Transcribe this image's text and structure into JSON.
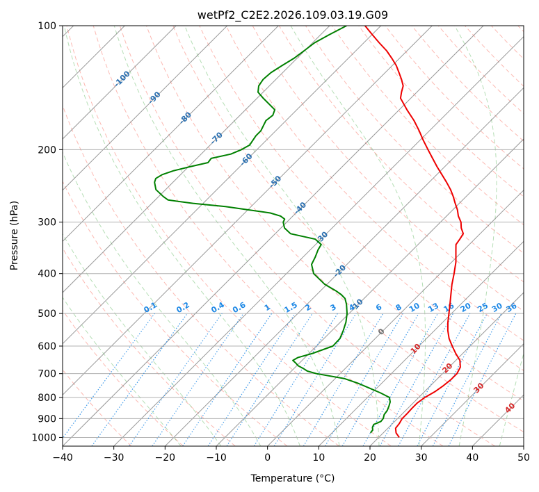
{
  "chart_data": {
    "type": "line",
    "subtype": "skew-t log-p diagram",
    "title": "wetPf2_C2E2.2026.109.03.19.G09",
    "xlabel": "Temperature (°C)",
    "ylabel": "Pressure (hPa)",
    "xlim": [
      -40,
      50
    ],
    "ylim": [
      1050,
      100
    ],
    "xticks": [
      -40,
      -30,
      -20,
      -10,
      0,
      10,
      20,
      30,
      40,
      50
    ],
    "yticks": [
      1000,
      900,
      800,
      700,
      600,
      500,
      400,
      300,
      200,
      100
    ],
    "grid": true,
    "colors": {
      "temperature": "#ee0000",
      "dewpoint": "#008000",
      "dry_adiabat": "#fa8072",
      "moist_adiabat": "#2ca02c",
      "isotherm": "#777777",
      "mixing_ratio": "#1e88e5",
      "freezing_isotherm_label": "#707070",
      "isotherm_label_blue": "#2a6fb0",
      "isotherm_label_red": "#d62728"
    },
    "isotherm_labels": [
      {
        "t": -100,
        "text": "-100",
        "p": 135
      },
      {
        "t": -90,
        "text": "-90",
        "p": 150
      },
      {
        "t": -80,
        "text": "-80",
        "p": 168
      },
      {
        "t": -70,
        "text": "-70",
        "p": 188
      },
      {
        "t": -60,
        "text": "-60",
        "p": 212
      },
      {
        "t": -50,
        "text": "-50",
        "p": 240
      },
      {
        "t": -40,
        "text": "-40",
        "p": 278
      },
      {
        "t": -30,
        "text": "-30",
        "p": 328
      },
      {
        "t": -20,
        "text": "-20",
        "p": 395
      },
      {
        "t": -10,
        "text": "-10",
        "p": 478
      },
      {
        "t": 0,
        "text": "0",
        "p": 555
      },
      {
        "t": 10,
        "text": "10",
        "p": 610
      },
      {
        "t": 20,
        "text": "20",
        "p": 680
      },
      {
        "t": 30,
        "text": "30",
        "p": 760
      },
      {
        "t": 40,
        "text": "40",
        "p": 850
      }
    ],
    "mixing_ratio_labels": [
      "0.1",
      "0.2",
      "0.4",
      "0.6",
      "1",
      "1.5",
      "2",
      "3",
      "4",
      "6",
      "8",
      "10",
      "13",
      "16",
      "20",
      "25",
      "30",
      "36"
    ],
    "series": [
      {
        "name": "Temperature",
        "points": [
          [
            1000,
            24.0
          ],
          [
            975,
            22.5
          ],
          [
            950,
            21.5
          ],
          [
            925,
            21.3
          ],
          [
            900,
            20.9
          ],
          [
            875,
            20.9
          ],
          [
            850,
            20.8
          ],
          [
            825,
            20.8
          ],
          [
            800,
            21.2
          ],
          [
            775,
            22.0
          ],
          [
            750,
            22.5
          ],
          [
            725,
            22.8
          ],
          [
            700,
            22.8
          ],
          [
            675,
            22.2
          ],
          [
            650,
            20.8
          ],
          [
            625,
            18.6
          ],
          [
            600,
            16.5
          ],
          [
            575,
            14.4
          ],
          [
            550,
            12.6
          ],
          [
            525,
            11.0
          ],
          [
            500,
            9.5
          ],
          [
            475,
            7.9
          ],
          [
            450,
            6.2
          ],
          [
            425,
            4.4
          ],
          [
            400,
            2.7
          ],
          [
            375,
            0.8
          ],
          [
            350,
            -1.6
          ],
          [
            340,
            -2.6
          ],
          [
            330,
            -2.9
          ],
          [
            320,
            -3.3
          ],
          [
            310,
            -4.8
          ],
          [
            300,
            -6.0
          ],
          [
            290,
            -7.7
          ],
          [
            280,
            -9.1
          ],
          [
            270,
            -10.8
          ],
          [
            260,
            -12.5
          ],
          [
            250,
            -14.4
          ],
          [
            240,
            -16.6
          ],
          [
            230,
            -19.0
          ],
          [
            220,
            -21.5
          ],
          [
            210,
            -24.0
          ],
          [
            200,
            -26.6
          ],
          [
            190,
            -29.3
          ],
          [
            180,
            -32.0
          ],
          [
            170,
            -35.0
          ],
          [
            160,
            -38.5
          ],
          [
            150,
            -42.0
          ],
          [
            145,
            -43.0
          ],
          [
            140,
            -43.9
          ],
          [
            135,
            -45.5
          ],
          [
            130,
            -47.3
          ],
          [
            125,
            -49.2
          ],
          [
            120,
            -51.5
          ],
          [
            115,
            -54.0
          ],
          [
            110,
            -57.0
          ],
          [
            105,
            -60.0
          ],
          [
            100,
            -63.1
          ]
        ]
      },
      {
        "name": "Dewpoint",
        "points": [
          [
            975,
            17.5
          ],
          [
            960,
            17.4
          ],
          [
            945,
            16.8
          ],
          [
            930,
            16.5
          ],
          [
            915,
            17.3
          ],
          [
            900,
            17.2
          ],
          [
            880,
            16.6
          ],
          [
            860,
            16.4
          ],
          [
            840,
            15.9
          ],
          [
            820,
            15.3
          ],
          [
            800,
            14.3
          ],
          [
            780,
            11.7
          ],
          [
            760,
            8.7
          ],
          [
            740,
            5.6
          ],
          [
            720,
            1.9
          ],
          [
            700,
            -4.6
          ],
          [
            690,
            -6.9
          ],
          [
            680,
            -8.2
          ],
          [
            670,
            -9.7
          ],
          [
            660,
            -10.7
          ],
          [
            650,
            -11.8
          ],
          [
            640,
            -11.4
          ],
          [
            625,
            -9.3
          ],
          [
            600,
            -6.8
          ],
          [
            575,
            -6.9
          ],
          [
            550,
            -7.8
          ],
          [
            525,
            -8.9
          ],
          [
            500,
            -10.4
          ],
          [
            475,
            -12.3
          ],
          [
            460,
            -13.7
          ],
          [
            450,
            -15.2
          ],
          [
            440,
            -17.1
          ],
          [
            425,
            -20.4
          ],
          [
            400,
            -24.7
          ],
          [
            380,
            -26.9
          ],
          [
            365,
            -27.6
          ],
          [
            350,
            -28.5
          ],
          [
            340,
            -28.9
          ],
          [
            330,
            -31.1
          ],
          [
            320,
            -37.0
          ],
          [
            310,
            -39.3
          ],
          [
            300,
            -40.7
          ],
          [
            295,
            -41.0
          ],
          [
            290,
            -42.4
          ],
          [
            285,
            -45.0
          ],
          [
            280,
            -50.0
          ],
          [
            275,
            -55.0
          ],
          [
            270,
            -62.0
          ],
          [
            265,
            -67.5
          ],
          [
            260,
            -69.1
          ],
          [
            250,
            -71.9
          ],
          [
            240,
            -73.6
          ],
          [
            235,
            -74.1
          ],
          [
            230,
            -73.6
          ],
          [
            225,
            -72.1
          ],
          [
            220,
            -69.7
          ],
          [
            215,
            -67.0
          ],
          [
            210,
            -67.2
          ],
          [
            205,
            -64.2
          ],
          [
            200,
            -63.0
          ],
          [
            195,
            -62.3
          ],
          [
            185,
            -62.9
          ],
          [
            180,
            -62.9
          ],
          [
            170,
            -63.9
          ],
          [
            165,
            -63.6
          ],
          [
            160,
            -64.3
          ],
          [
            150,
            -68.8
          ],
          [
            145,
            -71.0
          ],
          [
            140,
            -72.1
          ],
          [
            135,
            -72.5
          ],
          [
            130,
            -72.3
          ],
          [
            125,
            -71.5
          ],
          [
            120,
            -70.6
          ],
          [
            115,
            -70.1
          ],
          [
            110,
            -69.6
          ],
          [
            105,
            -68.3
          ],
          [
            100,
            -66.7
          ]
        ]
      }
    ]
  }
}
